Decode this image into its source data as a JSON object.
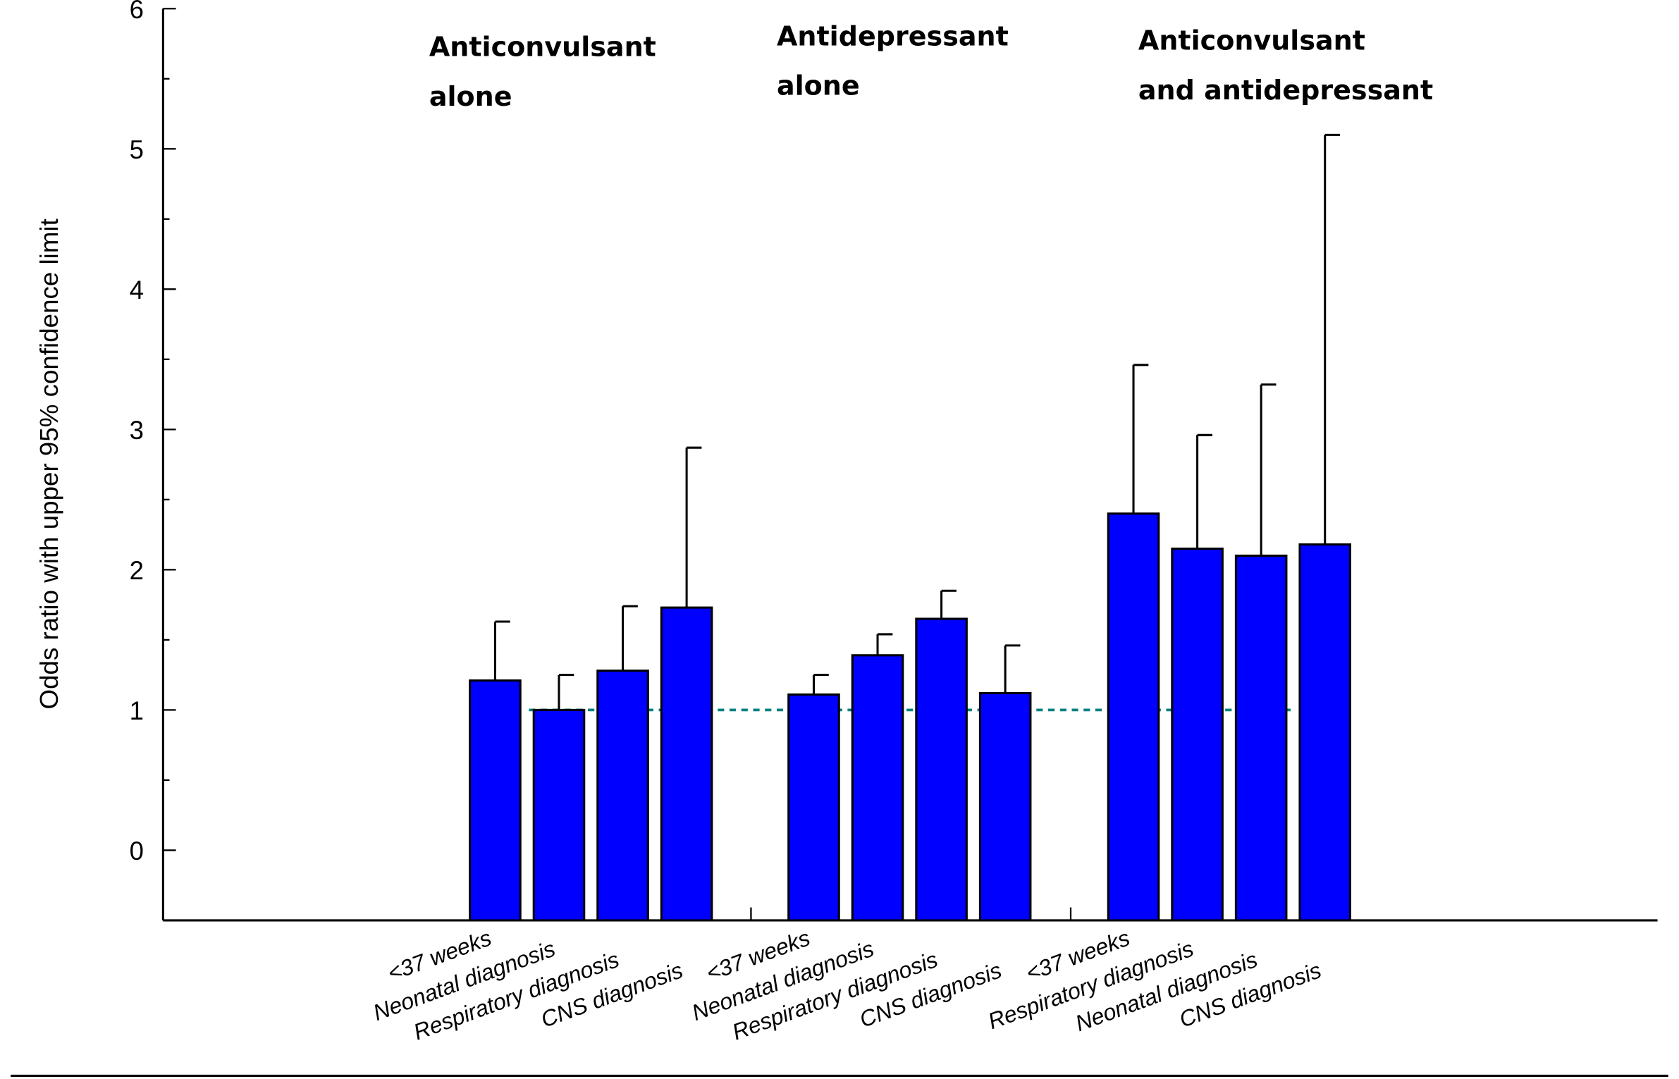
{
  "chart_data": {
    "type": "bar",
    "title": "",
    "xlabel": "",
    "ylabel": "Odds ratio with upper 95% confidence limit",
    "ylim": [
      -0.5,
      6
    ],
    "yticks": [
      "0",
      "1",
      "2",
      "3",
      "4",
      "5",
      "6"
    ],
    "grid": false,
    "reference_line": {
      "y": 1,
      "style": "dashed",
      "color": "#008080"
    },
    "bar_color": "#0000ff",
    "groups": [
      {
        "title_lines": [
          "Anticonvulsant",
          "alone"
        ],
        "categories": [
          "<37 weeks",
          "Neonatal diagnosis",
          "Respiratory diagnosis",
          "CNS diagnosis"
        ],
        "values": [
          1.21,
          1.0,
          1.28,
          1.73
        ],
        "upper_ci": [
          1.63,
          1.25,
          1.74,
          2.87
        ]
      },
      {
        "title_lines": [
          "Antidepressant",
          "alone"
        ],
        "categories": [
          "<37 weeks",
          "Neonatal diagnosis",
          "Respiratory diagnosis",
          "CNS diagnosis"
        ],
        "values": [
          1.11,
          1.39,
          1.65,
          1.12
        ],
        "upper_ci": [
          1.25,
          1.54,
          1.85,
          1.46
        ]
      },
      {
        "title_lines": [
          "Anticonvulsant",
          "and antidepressant"
        ],
        "categories": [
          "<37 weeks",
          "Respiratory diagnosis",
          "Neonatal diagnosis",
          "CNS diagnosis"
        ],
        "values": [
          2.4,
          2.15,
          2.1,
          2.18
        ],
        "upper_ci": [
          3.46,
          2.96,
          3.32,
          5.1
        ]
      }
    ]
  }
}
